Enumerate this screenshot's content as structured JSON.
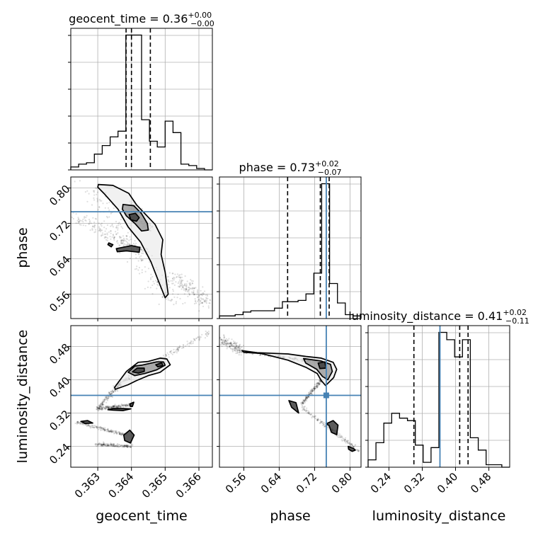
{
  "parameters": [
    "geocent_time",
    "phase",
    "luminosity_distance"
  ],
  "titles": {
    "geocent_time": {
      "prefix": "geocent_time = 0.36",
      "sup": "+0.00",
      "sub": "−0.00"
    },
    "phase": {
      "prefix": "phase = 0.73",
      "sup": "+0.02",
      "sub": "−0.07"
    },
    "luminosity_distance": {
      "prefix": "luminosity_distance = 0.41",
      "sup": "+0.02",
      "sub": "−0.11"
    }
  },
  "axis_labels": {
    "geocent_time": "geocent_time",
    "phase": "phase",
    "luminosity_distance": "luminosity_distance"
  },
  "colors": {
    "truth": "#4682b4",
    "line": "#000000",
    "grid": "#b0b0b0"
  },
  "chart_data": {
    "type": "corner",
    "ranges": {
      "geocent_time": [
        0.3622,
        0.3664
      ],
      "phase": [
        0.505,
        0.825
      ],
      "luminosity_distance": [
        0.19,
        0.53
      ]
    },
    "ticks": {
      "geocent_time": {
        "values": [
          0.363,
          0.364,
          0.365,
          0.366
        ],
        "labels": [
          "0.363",
          "0.364",
          "0.365",
          "0.366"
        ]
      },
      "phase": {
        "values": [
          0.56,
          0.64,
          0.72,
          0.8
        ],
        "labels": [
          "0.56",
          "0.64",
          "0.72",
          "0.80"
        ]
      },
      "luminosity_distance": {
        "values": [
          0.24,
          0.32,
          0.4,
          0.48
        ],
        "labels": [
          "0.24",
          "0.32",
          "0.40",
          "0.48"
        ]
      }
    },
    "truths": {
      "geocent_time": null,
      "phase": 0.7465,
      "luminosity_distance": 0.3625
    },
    "quantiles": {
      "geocent_time": [
        0.36384,
        0.364,
        0.36456
      ],
      "phase": [
        0.659,
        0.733,
        0.753
      ],
      "luminosity_distance": [
        0.3,
        0.41,
        0.43
      ]
    },
    "histograms": {
      "geocent_time": [
        2,
        4,
        5,
        11,
        17,
        23,
        27,
        94,
        94,
        35,
        20,
        16,
        34,
        26,
        4,
        3,
        1,
        0
      ],
      "phase": [
        2,
        2,
        3,
        5,
        6,
        6,
        6,
        8,
        13,
        13,
        14,
        19,
        35,
        104,
        27,
        12,
        3,
        2
      ],
      "luminosity_distance": [
        3,
        10,
        18,
        22,
        20,
        19,
        9,
        2,
        8,
        55,
        52,
        45,
        52,
        12,
        7,
        1,
        1,
        0
      ]
    },
    "contours": {
      "geocent_time|phase": [
        [
          [
            0.36302,
            0.808
          ],
          [
            0.36345,
            0.806
          ],
          [
            0.36392,
            0.788
          ],
          [
            0.36415,
            0.762
          ],
          [
            0.3644,
            0.742
          ],
          [
            0.3647,
            0.718
          ],
          [
            0.36493,
            0.683
          ],
          [
            0.36488,
            0.65
          ],
          [
            0.365,
            0.61
          ],
          [
            0.36509,
            0.56
          ],
          [
            0.365,
            0.552
          ],
          [
            0.3648,
            0.59
          ],
          [
            0.36458,
            0.633
          ],
          [
            0.36427,
            0.678
          ],
          [
            0.3639,
            0.712
          ],
          [
            0.3636,
            0.752
          ],
          [
            0.36318,
            0.788
          ],
          [
            0.363,
            0.802
          ]
        ],
        [
          [
            0.36375,
            0.763
          ],
          [
            0.36407,
            0.76
          ],
          [
            0.3643,
            0.742
          ],
          [
            0.36447,
            0.72
          ],
          [
            0.3645,
            0.705
          ],
          [
            0.3643,
            0.703
          ],
          [
            0.3641,
            0.72
          ],
          [
            0.36385,
            0.737
          ],
          [
            0.36373,
            0.752
          ]
        ],
        [
          [
            0.36393,
            0.74
          ],
          [
            0.36412,
            0.743
          ],
          [
            0.36423,
            0.733
          ],
          [
            0.36415,
            0.725
          ],
          [
            0.36398,
            0.728
          ]
        ],
        [
          [
            0.3633,
            0.672
          ],
          [
            0.3634,
            0.667
          ],
          [
            0.36345,
            0.672
          ],
          [
            0.36333,
            0.676
          ]
        ],
        [
          [
            0.36355,
            0.663
          ],
          [
            0.364,
            0.67
          ],
          [
            0.36425,
            0.666
          ],
          [
            0.36423,
            0.655
          ],
          [
            0.36385,
            0.658
          ],
          [
            0.36358,
            0.656
          ]
        ]
      ],
      "geocent_time|luminosity_distance": [
        [
          [
            0.3635,
            0.382
          ],
          [
            0.36385,
            0.42
          ],
          [
            0.3642,
            0.442
          ],
          [
            0.3645,
            0.444
          ],
          [
            0.36485,
            0.452
          ],
          [
            0.36505,
            0.45
          ],
          [
            0.36515,
            0.436
          ],
          [
            0.36485,
            0.418
          ],
          [
            0.3645,
            0.41
          ],
          [
            0.36415,
            0.398
          ],
          [
            0.3639,
            0.388
          ],
          [
            0.36352,
            0.377
          ]
        ],
        [
          [
            0.3639,
            0.418
          ],
          [
            0.3641,
            0.433
          ],
          [
            0.3643,
            0.435
          ],
          [
            0.36475,
            0.443
          ],
          [
            0.36495,
            0.443
          ],
          [
            0.365,
            0.435
          ],
          [
            0.36475,
            0.424
          ],
          [
            0.3644,
            0.415
          ],
          [
            0.3641,
            0.41
          ]
        ],
        [
          [
            0.36403,
            0.419
          ],
          [
            0.36417,
            0.428
          ],
          [
            0.36438,
            0.428
          ],
          [
            0.36438,
            0.42
          ],
          [
            0.3642,
            0.416
          ]
        ],
        [
          [
            0.36472,
            0.436
          ],
          [
            0.3649,
            0.441
          ],
          [
            0.36493,
            0.434
          ],
          [
            0.36478,
            0.431
          ]
        ],
        [
          [
            0.3633,
            0.328
          ],
          [
            0.36345,
            0.331
          ],
          [
            0.36375,
            0.331
          ],
          [
            0.36398,
            0.33
          ],
          [
            0.36375,
            0.326
          ],
          [
            0.36345,
            0.327
          ]
        ],
        [
          [
            0.36395,
            0.342
          ],
          [
            0.36407,
            0.346
          ],
          [
            0.36403,
            0.336
          ],
          [
            0.36397,
            0.336
          ]
        ],
        [
          [
            0.3625,
            0.3
          ],
          [
            0.3627,
            0.302
          ],
          [
            0.36285,
            0.296
          ],
          [
            0.36262,
            0.295
          ]
        ],
        [
          [
            0.36377,
            0.267
          ],
          [
            0.36395,
            0.279
          ],
          [
            0.36408,
            0.267
          ],
          [
            0.36397,
            0.248
          ],
          [
            0.3638,
            0.254
          ]
        ]
      ],
      "phase|luminosity_distance": [
        [
          [
            0.556,
            0.47
          ],
          [
            0.59,
            0.465
          ],
          [
            0.66,
            0.462
          ],
          [
            0.7,
            0.456
          ],
          [
            0.735,
            0.452
          ],
          [
            0.762,
            0.442
          ],
          [
            0.77,
            0.425
          ],
          [
            0.763,
            0.405
          ],
          [
            0.745,
            0.386
          ],
          [
            0.735,
            0.398
          ],
          [
            0.726,
            0.415
          ],
          [
            0.7,
            0.43
          ],
          [
            0.66,
            0.447
          ],
          [
            0.6,
            0.463
          ],
          [
            0.56,
            0.466
          ]
        ],
        [
          [
            0.695,
            0.451
          ],
          [
            0.735,
            0.445
          ],
          [
            0.756,
            0.437
          ],
          [
            0.76,
            0.42
          ],
          [
            0.75,
            0.4
          ],
          [
            0.738,
            0.408
          ],
          [
            0.725,
            0.425
          ],
          [
            0.7,
            0.44
          ]
        ],
        [
          [
            0.728,
            0.44
          ],
          [
            0.743,
            0.443
          ],
          [
            0.746,
            0.428
          ],
          [
            0.732,
            0.427
          ]
        ],
        [
          [
            0.662,
            0.35
          ],
          [
            0.668,
            0.334
          ],
          [
            0.684,
            0.32
          ],
          [
            0.678,
            0.345
          ]
        ],
        [
          [
            0.746,
            0.294
          ],
          [
            0.762,
            0.302
          ],
          [
            0.773,
            0.291
          ],
          [
            0.77,
            0.268
          ],
          [
            0.758,
            0.274
          ],
          [
            0.753,
            0.29
          ]
        ],
        [
          [
            0.796,
            0.24
          ],
          [
            0.808,
            0.235
          ],
          [
            0.812,
            0.231
          ],
          [
            0.805,
            0.228
          ],
          [
            0.797,
            0.233
          ]
        ]
      ]
    },
    "samples": {
      "geocent_time|phase": [
        {
          "from": [
            0.3627,
            0.805
          ],
          "to": [
            0.3653,
            0.53
          ],
          "spread": [
            0.00035,
            0.022
          ]
        },
        {
          "from": [
            0.3623,
            0.735
          ],
          "to": [
            0.3645,
            0.65
          ],
          "spread": [
            0.0003,
            0.012
          ]
        },
        {
          "from": [
            0.364,
            0.76
          ],
          "to": [
            0.3645,
            0.71
          ],
          "spread": [
            0.00015,
            0.01
          ]
        },
        {
          "from": [
            0.3652,
            0.6
          ],
          "to": [
            0.3663,
            0.54
          ],
          "spread": [
            0.0003,
            0.015
          ]
        }
      ],
      "geocent_time|luminosity_distance": [
        {
          "from": [
            0.3637,
            0.395
          ],
          "to": [
            0.3663,
            0.515
          ],
          "spread": [
            0.0001,
            0.006
          ]
        },
        {
          "from": [
            0.363,
            0.33
          ],
          "to": [
            0.3637,
            0.395
          ],
          "spread": [
            8e-05,
            0.005
          ]
        },
        {
          "from": [
            0.363,
            0.33
          ],
          "to": [
            0.364,
            0.34
          ],
          "spread": [
            5e-05,
            0.004
          ]
        },
        {
          "from": [
            0.3624,
            0.298
          ],
          "to": [
            0.3638,
            0.268
          ],
          "spread": [
            8e-05,
            0.004
          ]
        },
        {
          "from": [
            0.363,
            0.245
          ],
          "to": [
            0.364,
            0.24
          ],
          "spread": [
            0.0001,
            0.004
          ]
        }
      ],
      "phase|luminosity_distance": [
        {
          "from": [
            0.505,
            0.5
          ],
          "to": [
            0.555,
            0.47
          ],
          "spread": [
            0.01,
            0.012
          ]
        },
        {
          "from": [
            0.555,
            0.468
          ],
          "to": [
            0.745,
            0.44
          ],
          "spread": [
            0.006,
            0.003
          ]
        },
        {
          "from": [
            0.69,
            0.335
          ],
          "to": [
            0.825,
            0.225
          ],
          "spread": [
            0.006,
            0.004
          ]
        },
        {
          "from": [
            0.735,
            0.4
          ],
          "to": [
            0.69,
            0.34
          ],
          "spread": [
            0.004,
            0.004
          ]
        }
      ]
    }
  }
}
